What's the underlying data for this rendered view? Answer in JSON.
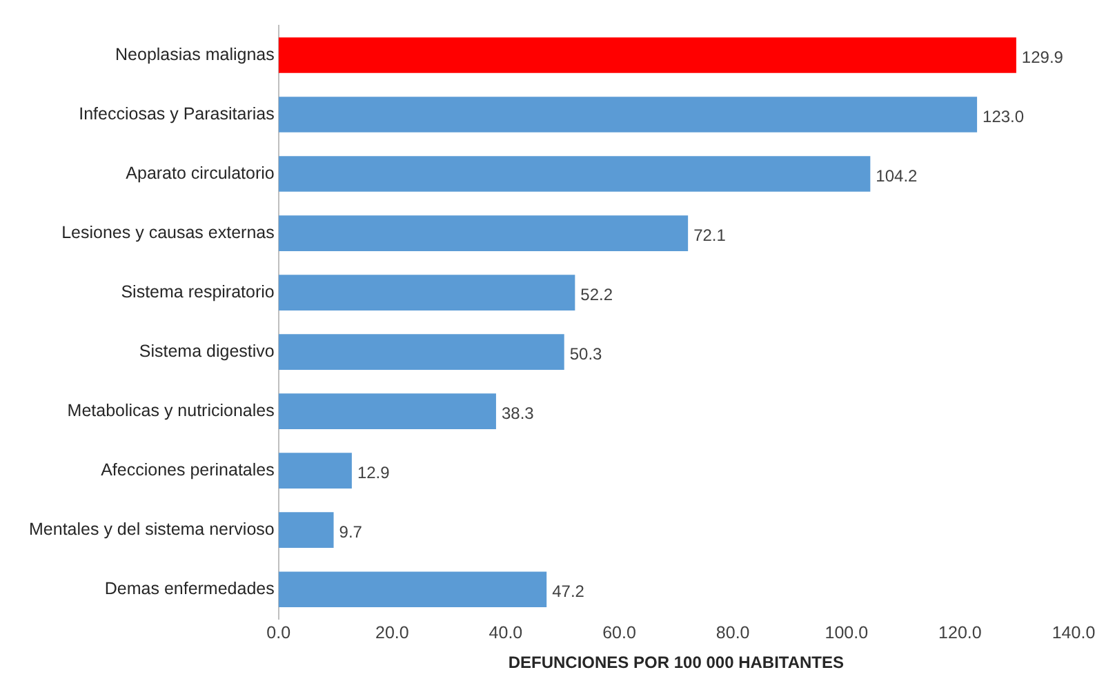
{
  "chart_data": {
    "type": "bar",
    "orientation": "horizontal",
    "xlabel": "DEFUNCIONES POR 100 000 HABITANTES",
    "categories": [
      "Neoplasias malignas",
      "Infecciosas y Parasitarias",
      "Aparato circulatorio",
      "Lesiones y causas externas",
      "Sistema respiratorio",
      "Sistema digestivo",
      "Metabolicas y nutricionales",
      "Afecciones perinatales",
      "Mentales y del sistema nervioso",
      "Demas enfermedades"
    ],
    "values": [
      129.9,
      123.0,
      104.2,
      72.1,
      52.2,
      50.3,
      38.3,
      12.9,
      9.7,
      47.2
    ],
    "value_labels": [
      "129.9",
      "123.0",
      "104.2",
      "72.1",
      "52.2",
      "50.3",
      "38.3",
      "12.9",
      "9.7",
      "47.2"
    ],
    "colors": [
      "#ff0000",
      "#5b9bd5",
      "#5b9bd5",
      "#5b9bd5",
      "#5b9bd5",
      "#5b9bd5",
      "#5b9bd5",
      "#5b9bd5",
      "#5b9bd5",
      "#5b9bd5"
    ],
    "xlim": [
      0,
      140
    ],
    "xticks": [
      {
        "value": 0,
        "label": "0.0"
      },
      {
        "value": 20,
        "label": "20.0"
      },
      {
        "value": 40,
        "label": "40.0"
      },
      {
        "value": 60,
        "label": "60.0"
      },
      {
        "value": 80,
        "label": "80.0"
      },
      {
        "value": 100,
        "label": "100.0"
      },
      {
        "value": 120,
        "label": "120.0"
      },
      {
        "value": 140,
        "label": "140.0"
      }
    ],
    "grid": false,
    "legend": false
  }
}
